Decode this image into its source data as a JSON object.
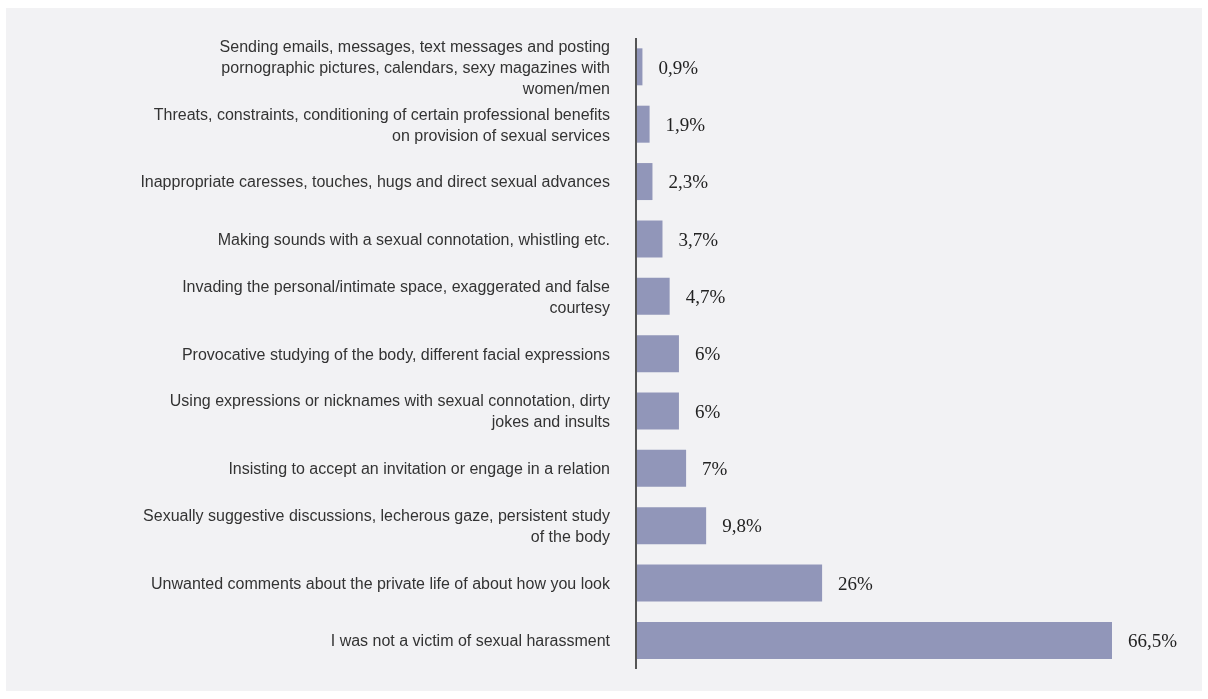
{
  "chart_data": {
    "type": "bar",
    "orientation": "horizontal",
    "categories": [
      "Sending emails, messages, text messages and posting pornographic pictures, calendars, sexy magazines with women/men",
      "Threats, constraints, conditioning of certain professional benefits on provision of sexual services",
      "Inappropriate caresses, touches, hugs and direct sexual advances",
      "Making sounds with a sexual connotation, whistling etc.",
      "Invading the personal/intimate space, exaggerated and false courtesy",
      "Provocative studying of the body, different facial expressions",
      "Using expressions or nicknames with sexual connotation, dirty jokes and insults",
      "Insisting to accept an invitation or engage in a relation",
      "Sexually suggestive discussions, lecherous gaze, persistent study of the body",
      "Unwanted comments about the private life of about how you look",
      "I was not a victim of sexual harassment"
    ],
    "values": [
      0.9,
      1.9,
      2.3,
      3.7,
      4.7,
      6,
      6,
      7,
      9.8,
      26,
      66.5
    ],
    "value_labels": [
      "0,9%",
      "1,9%",
      "2,3%",
      "3,7%",
      "4,7%",
      "6%",
      "6%",
      "7%",
      "9,8%",
      "26%",
      "66,5%"
    ],
    "color": "#9196b9"
  }
}
